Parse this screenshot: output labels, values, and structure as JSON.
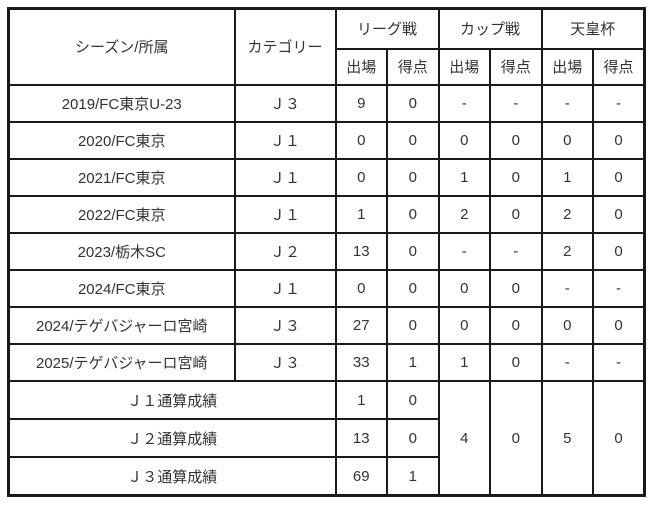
{
  "page": {
    "background": "#ffffff"
  },
  "colors": {
    "border": "#1a1a1a",
    "text": "#333333",
    "bg": "#ffffff"
  },
  "table": {
    "header": {
      "season_club": "シーズン/所属",
      "category": "カテゴリー",
      "groups": [
        {
          "label": "リーグ戦"
        },
        {
          "label": "カップ戦"
        },
        {
          "label": "天皇杯"
        }
      ],
      "sub_apps": "出場",
      "sub_goals": "得点"
    },
    "rows": [
      {
        "season": "2019/FC東京U-23",
        "category": "Ｊ３",
        "league_apps": "9",
        "league_goals": "0",
        "cup_apps": "-",
        "cup_goals": "-",
        "emp_apps": "-",
        "emp_goals": "-"
      },
      {
        "season": "2020/FC東京",
        "category": "Ｊ１",
        "league_apps": "0",
        "league_goals": "0",
        "cup_apps": "0",
        "cup_goals": "0",
        "emp_apps": "0",
        "emp_goals": "0"
      },
      {
        "season": "2021/FC東京",
        "category": "Ｊ１",
        "league_apps": "0",
        "league_goals": "0",
        "cup_apps": "1",
        "cup_goals": "0",
        "emp_apps": "1",
        "emp_goals": "0"
      },
      {
        "season": "2022/FC東京",
        "category": "Ｊ１",
        "league_apps": "1",
        "league_goals": "0",
        "cup_apps": "2",
        "cup_goals": "0",
        "emp_apps": "2",
        "emp_goals": "0"
      },
      {
        "season": "2023/栃木SC",
        "category": "Ｊ２",
        "league_apps": "13",
        "league_goals": "0",
        "cup_apps": "-",
        "cup_goals": "-",
        "emp_apps": "2",
        "emp_goals": "0"
      },
      {
        "season": "2024/FC東京",
        "category": "Ｊ１",
        "league_apps": "0",
        "league_goals": "0",
        "cup_apps": "0",
        "cup_goals": "0",
        "emp_apps": "-",
        "emp_goals": "-"
      },
      {
        "season": "2024/テゲバジャーロ宮崎",
        "category": "Ｊ３",
        "league_apps": "27",
        "league_goals": "0",
        "cup_apps": "0",
        "cup_goals": "0",
        "emp_apps": "0",
        "emp_goals": "0"
      },
      {
        "season": "2025/テゲバジャーロ宮崎",
        "category": "Ｊ３",
        "league_apps": "33",
        "league_goals": "1",
        "cup_apps": "1",
        "cup_goals": "0",
        "emp_apps": "-",
        "emp_goals": "-"
      }
    ],
    "totals": [
      {
        "label": "Ｊ１通算成績",
        "league_apps": "1",
        "league_goals": "0"
      },
      {
        "label": "Ｊ２通算成績",
        "league_apps": "13",
        "league_goals": "0"
      },
      {
        "label": "Ｊ３通算成績",
        "league_apps": "69",
        "league_goals": "1"
      }
    ],
    "totals_merged": {
      "cup_apps": "4",
      "cup_goals": "0",
      "emp_apps": "5",
      "emp_goals": "0"
    }
  }
}
